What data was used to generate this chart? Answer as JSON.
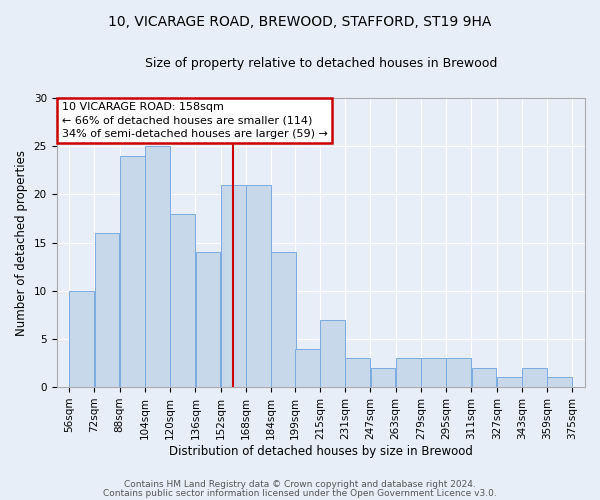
{
  "title1": "10, VICARAGE ROAD, BREWOOD, STAFFORD, ST19 9HA",
  "title2": "Size of property relative to detached houses in Brewood",
  "xlabel": "Distribution of detached houses by size in Brewood",
  "ylabel": "Number of detached properties",
  "bar_color": "#c8d8eb",
  "bar_edge_color": "#7aabe0",
  "background_color": "#e8eef8",
  "bins_left": [
    56,
    72,
    88,
    104,
    120,
    136,
    152,
    168,
    184,
    199,
    215,
    231,
    247,
    263,
    279,
    295,
    311,
    327,
    343,
    359
  ],
  "bin_width": 16,
  "bar_heights": [
    10,
    16,
    24,
    25,
    18,
    14,
    21,
    21,
    14,
    4,
    7,
    3,
    2,
    3,
    3,
    3,
    2,
    1,
    2,
    1
  ],
  "tick_labels": [
    "56sqm",
    "72sqm",
    "88sqm",
    "104sqm",
    "120sqm",
    "136sqm",
    "152sqm",
    "168sqm",
    "184sqm",
    "199sqm",
    "215sqm",
    "231sqm",
    "247sqm",
    "263sqm",
    "279sqm",
    "295sqm",
    "311sqm",
    "327sqm",
    "343sqm",
    "359sqm",
    "375sqm"
  ],
  "tick_positions": [
    56,
    72,
    88,
    104,
    120,
    136,
    152,
    168,
    184,
    199,
    215,
    231,
    247,
    263,
    279,
    295,
    311,
    327,
    343,
    359,
    375
  ],
  "red_line_x": 160,
  "ylim": [
    0,
    30
  ],
  "yticks": [
    0,
    5,
    10,
    15,
    20,
    25,
    30
  ],
  "annotation_title": "10 VICARAGE ROAD: 158sqm",
  "annotation_line1": "← 66% of detached houses are smaller (114)",
  "annotation_line2": "34% of semi-detached houses are larger (59) →",
  "annotation_box_color": "#ffffff",
  "annotation_box_edge_color": "#cc0000",
  "footer_line1": "Contains HM Land Registry data © Crown copyright and database right 2024.",
  "footer_line2": "Contains public sector information licensed under the Open Government Licence v3.0.",
  "grid_color": "#ffffff",
  "title_fontsize": 10,
  "subtitle_fontsize": 9,
  "axis_label_fontsize": 8.5,
  "tick_fontsize": 7.5,
  "footer_fontsize": 6.5,
  "annot_fontsize": 8
}
